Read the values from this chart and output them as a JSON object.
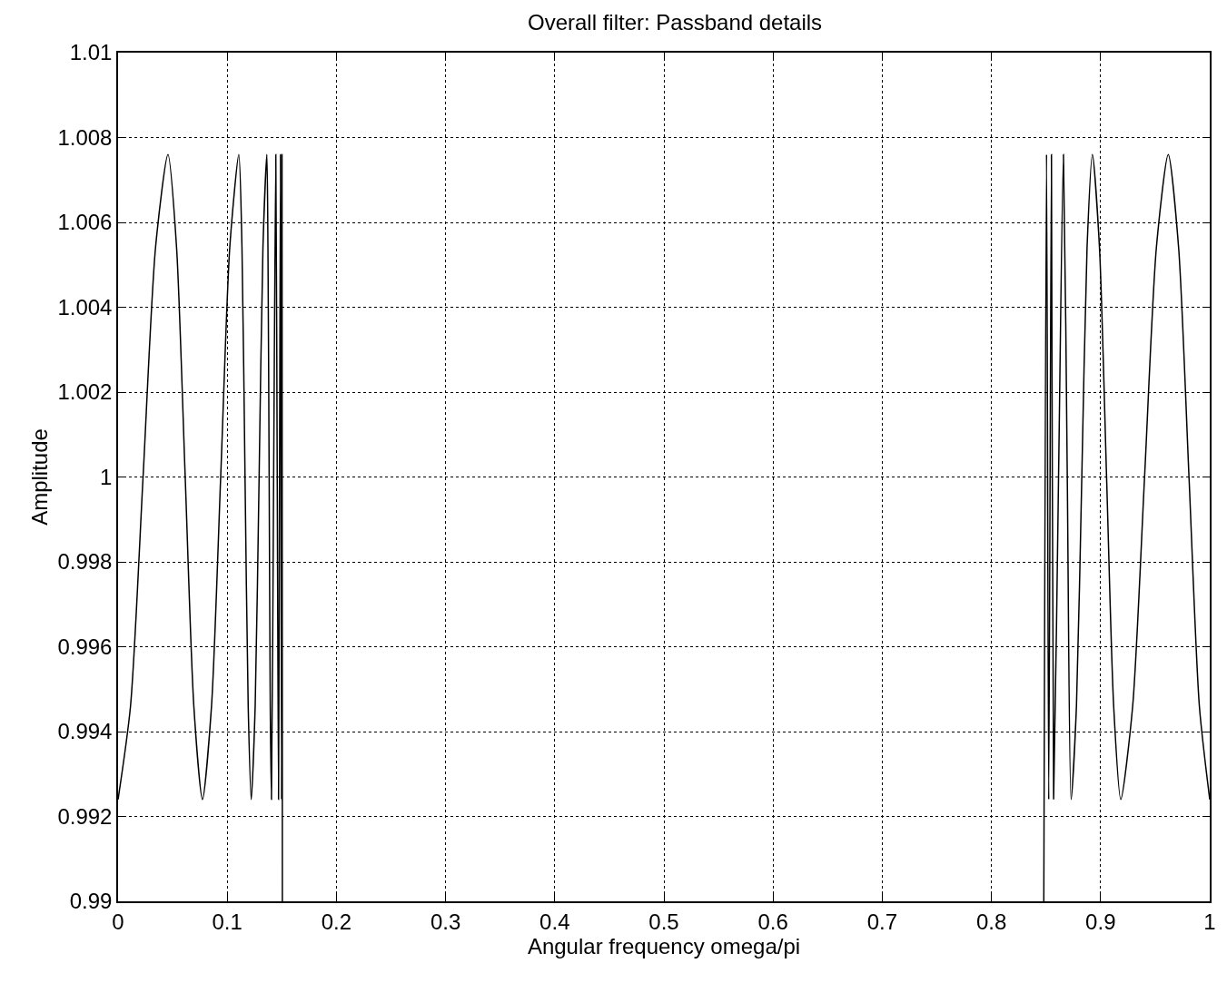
{
  "chart_data": {
    "type": "line",
    "title": "Overall filter: Passband details",
    "xlabel": "Angular frequency omega/pi",
    "ylabel": "Amplitude",
    "x": [
      0,
      0.0114,
      0.0229,
      0.0343,
      0.0457,
      0.0536,
      0.0615,
      0.0694,
      0.0773,
      0.0856,
      0.094,
      0.1023,
      0.1106,
      0.1135,
      0.1163,
      0.1192,
      0.122,
      0.1256,
      0.1292,
      0.1327,
      0.1363,
      0.1373,
      0.1384,
      0.1394,
      0.1405,
      0.1425,
      0.1445,
      0.1458,
      0.147,
      0.1479,
      0.1488,
      0.1493,
      0.1498,
      0.1502,
      0.1505,
      0.5,
      0.848,
      0.8505,
      0.8525,
      0.855,
      0.857,
      0.8615,
      0.866,
      0.8695,
      0.873,
      0.8779,
      0.8828,
      0.8876,
      0.8925,
      0.899,
      0.9055,
      0.912,
      0.9185,
      0.9294,
      0.9403,
      0.9511,
      0.962,
      0.9715,
      0.981,
      0.9905,
      1
    ],
    "series": [
      {
        "color": "#000000",
        "values": [
          0.9924,
          0.9946,
          1.0,
          1.0054,
          1.0076,
          1.0054,
          1.0,
          0.9946,
          0.9924,
          0.9946,
          1.0,
          1.0054,
          1.0076,
          1.0054,
          1.0,
          0.9946,
          0.9924,
          0.9946,
          1.0,
          1.0054,
          1.0076,
          1.0054,
          1.0,
          0.9946,
          0.9924,
          1.0,
          1.0076,
          1.0,
          0.9924,
          1.0,
          1.0076,
          1.0,
          0.9924,
          1.0076,
          0.99,
          null,
          0.99,
          1.0076,
          0.9924,
          1.0076,
          0.9924,
          1.0,
          1.0076,
          1.0,
          0.9924,
          0.9946,
          1.0,
          1.0054,
          1.0076,
          1.0054,
          1.0,
          0.9946,
          0.9924,
          0.9946,
          1.0,
          1.0054,
          1.0076,
          1.0054,
          1.0,
          0.9946,
          0.9924
        ]
      }
    ],
    "xlim": [
      0,
      1
    ],
    "xticks": [
      0,
      0.1,
      0.2,
      0.3,
      0.4,
      0.5,
      0.6,
      0.7,
      0.8,
      0.9,
      1
    ],
    "ylim": [
      0.99,
      1.01
    ],
    "yticks": [
      0.99,
      0.992,
      0.994,
      0.996,
      0.998,
      1,
      1.002,
      1.004,
      1.006,
      1.008,
      1.01
    ],
    "grid": true,
    "line_style": "solid"
  }
}
